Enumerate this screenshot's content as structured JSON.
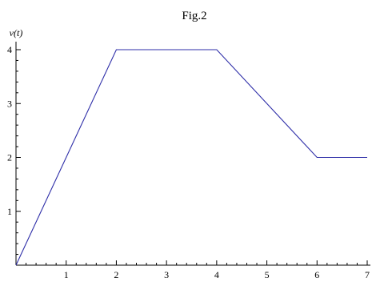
{
  "chart_data": {
    "type": "line",
    "title": "Fig.2",
    "xlabel": "",
    "ylabel": "v(t)",
    "xlim": [
      0,
      7
    ],
    "ylim": [
      0,
      4
    ],
    "x_ticks": [
      1,
      2,
      3,
      4,
      5,
      6,
      7
    ],
    "y_ticks": [
      1,
      2,
      3,
      4
    ],
    "grid": false,
    "series": [
      {
        "color": "#2e2ea8",
        "points": [
          [
            0,
            0
          ],
          [
            2,
            4
          ],
          [
            4,
            4
          ],
          [
            6,
            2
          ],
          [
            7,
            2
          ]
        ]
      }
    ]
  }
}
